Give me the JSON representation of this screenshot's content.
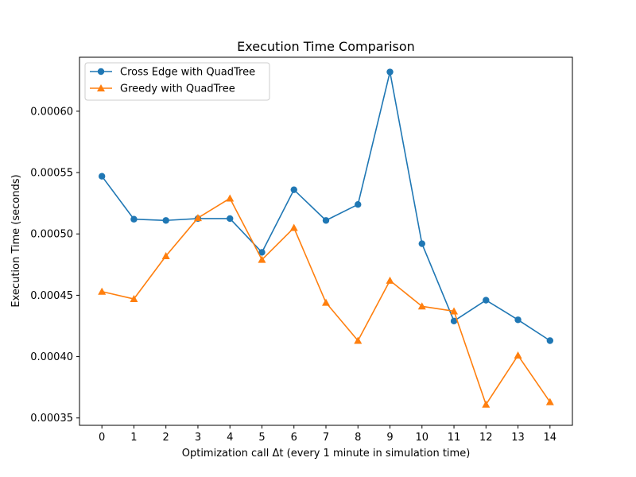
{
  "chart_data": {
    "type": "line",
    "title": "Execution Time Comparison",
    "xlabel": "Optimization call Δt (every 1 minute in simulation time)",
    "ylabel": "Execution Time (seconds)",
    "x": [
      0,
      1,
      2,
      3,
      4,
      5,
      6,
      7,
      8,
      9,
      10,
      11,
      12,
      13,
      14
    ],
    "xlim": [
      -0.7,
      14.7
    ],
    "ylim": [
      0.000344,
      0.000644
    ],
    "yticks": [
      0.00035,
      0.0004,
      0.00045,
      0.0005,
      0.00055,
      0.0006
    ],
    "ytick_labels": [
      "0.00035",
      "0.00040",
      "0.00045",
      "0.00050",
      "0.00055",
      "0.00060"
    ],
    "xtick_labels": [
      "0",
      "1",
      "2",
      "3",
      "4",
      "5",
      "6",
      "7",
      "8",
      "9",
      "10",
      "11",
      "12",
      "13",
      "14"
    ],
    "grid": false,
    "legend_position": "top-left",
    "series": [
      {
        "name": "Cross Edge with QuadTree",
        "color": "#1f77b4",
        "marker": "circle",
        "values": [
          0.000547,
          0.000512,
          0.000511,
          0.0005125,
          0.0005125,
          0.000485,
          0.000536,
          0.000511,
          0.000524,
          0.000632,
          0.000492,
          0.000429,
          0.000446,
          0.00043,
          0.000413
        ]
      },
      {
        "name": "Greedy with QuadTree",
        "color": "#ff7f0e",
        "marker": "triangle",
        "values": [
          0.000453,
          0.000447,
          0.000482,
          0.000513,
          0.000529,
          0.000479,
          0.000505,
          0.000444,
          0.000413,
          0.000462,
          0.000441,
          0.000437,
          0.000361,
          0.000401,
          0.000363
        ]
      }
    ]
  }
}
